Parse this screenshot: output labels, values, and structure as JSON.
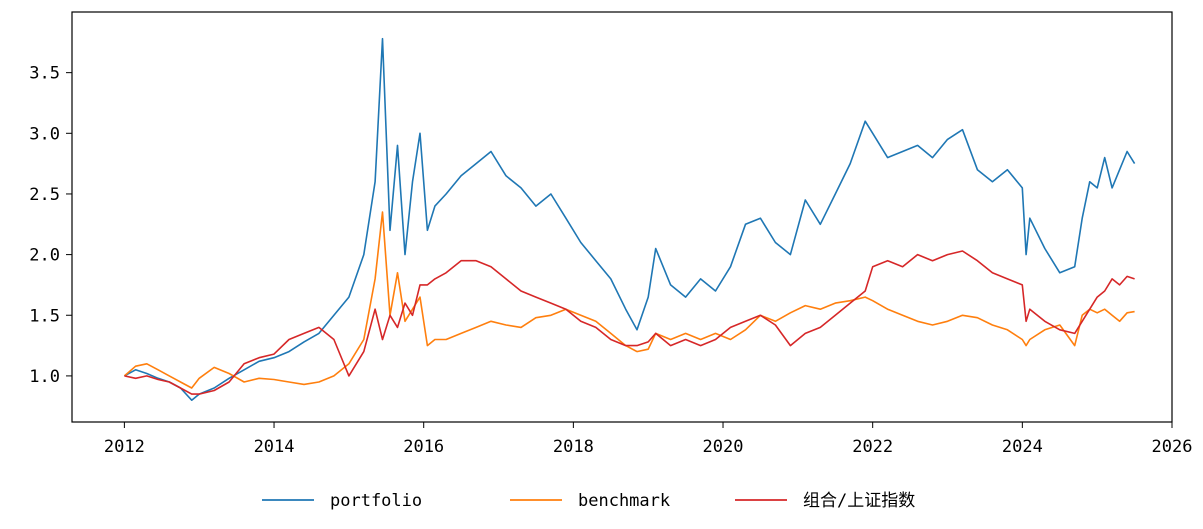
{
  "chart_data": {
    "type": "line",
    "title": "",
    "xlabel": "",
    "ylabel": "",
    "xlim": [
      2011.3,
      2026.0
    ],
    "ylim": [
      0.62,
      4.0
    ],
    "grid": false,
    "legend_placement": "bottom-center",
    "x_ticks": [
      "2012",
      "2014",
      "2016",
      "2018",
      "2020",
      "2022",
      "2024",
      "2026"
    ],
    "y_ticks": [
      "1.0",
      "1.5",
      "2.0",
      "2.5",
      "3.0",
      "3.5"
    ],
    "series": [
      {
        "name": "portfolio",
        "color": "#1f77b4",
        "x": [
          2012.0,
          2012.15,
          2012.3,
          2012.45,
          2012.6,
          2012.75,
          2012.9,
          2013.0,
          2013.2,
          2013.4,
          2013.6,
          2013.8,
          2014.0,
          2014.2,
          2014.4,
          2014.6,
          2014.8,
          2015.0,
          2015.2,
          2015.35,
          2015.45,
          2015.55,
          2015.65,
          2015.75,
          2015.85,
          2015.95,
          2016.05,
          2016.15,
          2016.3,
          2016.5,
          2016.7,
          2016.9,
          2017.1,
          2017.3,
          2017.5,
          2017.7,
          2017.9,
          2018.1,
          2018.3,
          2018.5,
          2018.7,
          2018.85,
          2019.0,
          2019.1,
          2019.3,
          2019.5,
          2019.7,
          2019.9,
          2020.1,
          2020.3,
          2020.5,
          2020.7,
          2020.9,
          2021.1,
          2021.3,
          2021.5,
          2021.7,
          2021.9,
          2022.0,
          2022.2,
          2022.4,
          2022.6,
          2022.8,
          2023.0,
          2023.2,
          2023.4,
          2023.6,
          2023.8,
          2024.0,
          2024.05,
          2024.1,
          2024.3,
          2024.5,
          2024.7,
          2024.8,
          2024.9,
          2025.0,
          2025.1,
          2025.2,
          2025.3,
          2025.4,
          2025.5
        ],
        "values": [
          1.0,
          1.05,
          1.02,
          0.98,
          0.95,
          0.9,
          0.8,
          0.85,
          0.9,
          0.98,
          1.05,
          1.12,
          1.15,
          1.2,
          1.28,
          1.35,
          1.5,
          1.65,
          2.0,
          2.6,
          3.78,
          2.2,
          2.9,
          2.0,
          2.6,
          3.0,
          2.2,
          2.4,
          2.5,
          2.65,
          2.75,
          2.85,
          2.65,
          2.55,
          2.4,
          2.5,
          2.3,
          2.1,
          1.95,
          1.8,
          1.55,
          1.38,
          1.65,
          2.05,
          1.75,
          1.65,
          1.8,
          1.7,
          1.9,
          2.25,
          2.3,
          2.1,
          2.0,
          2.45,
          2.25,
          2.5,
          2.75,
          3.1,
          3.0,
          2.8,
          2.85,
          2.9,
          2.8,
          2.95,
          3.03,
          2.7,
          2.6,
          2.7,
          2.55,
          2.0,
          2.3,
          2.05,
          1.85,
          1.9,
          2.3,
          2.6,
          2.55,
          2.8,
          2.55,
          2.7,
          2.85,
          2.75
        ]
      },
      {
        "name": "benchmark",
        "color": "#ff7f0e",
        "x": [
          2012.0,
          2012.15,
          2012.3,
          2012.45,
          2012.6,
          2012.75,
          2012.9,
          2013.0,
          2013.2,
          2013.4,
          2013.6,
          2013.8,
          2014.0,
          2014.2,
          2014.4,
          2014.6,
          2014.8,
          2015.0,
          2015.2,
          2015.35,
          2015.45,
          2015.55,
          2015.65,
          2015.75,
          2015.85,
          2015.95,
          2016.05,
          2016.15,
          2016.3,
          2016.5,
          2016.7,
          2016.9,
          2017.1,
          2017.3,
          2017.5,
          2017.7,
          2017.9,
          2018.1,
          2018.3,
          2018.5,
          2018.7,
          2018.85,
          2019.0,
          2019.1,
          2019.3,
          2019.5,
          2019.7,
          2019.9,
          2020.1,
          2020.3,
          2020.5,
          2020.7,
          2020.9,
          2021.1,
          2021.3,
          2021.5,
          2021.7,
          2021.9,
          2022.0,
          2022.2,
          2022.4,
          2022.6,
          2022.8,
          2023.0,
          2023.2,
          2023.4,
          2023.6,
          2023.8,
          2024.0,
          2024.05,
          2024.1,
          2024.3,
          2024.5,
          2024.7,
          2024.8,
          2024.9,
          2025.0,
          2025.1,
          2025.2,
          2025.3,
          2025.4,
          2025.5
        ],
        "values": [
          1.0,
          1.08,
          1.1,
          1.05,
          1.0,
          0.95,
          0.9,
          0.98,
          1.07,
          1.02,
          0.95,
          0.98,
          0.97,
          0.95,
          0.93,
          0.95,
          1.0,
          1.1,
          1.3,
          1.8,
          2.35,
          1.5,
          1.85,
          1.45,
          1.55,
          1.65,
          1.25,
          1.3,
          1.3,
          1.35,
          1.4,
          1.45,
          1.42,
          1.4,
          1.48,
          1.5,
          1.55,
          1.5,
          1.45,
          1.35,
          1.25,
          1.2,
          1.22,
          1.35,
          1.3,
          1.35,
          1.3,
          1.35,
          1.3,
          1.38,
          1.5,
          1.45,
          1.52,
          1.58,
          1.55,
          1.6,
          1.62,
          1.65,
          1.62,
          1.55,
          1.5,
          1.45,
          1.42,
          1.45,
          1.5,
          1.48,
          1.42,
          1.38,
          1.3,
          1.25,
          1.3,
          1.38,
          1.42,
          1.25,
          1.5,
          1.55,
          1.52,
          1.55,
          1.5,
          1.45,
          1.52,
          1.53
        ]
      },
      {
        "name": "组合/上证指数",
        "color": "#d62728",
        "x": [
          2012.0,
          2012.15,
          2012.3,
          2012.45,
          2012.6,
          2012.75,
          2012.9,
          2013.0,
          2013.2,
          2013.4,
          2013.6,
          2013.8,
          2014.0,
          2014.2,
          2014.4,
          2014.6,
          2014.8,
          2015.0,
          2015.2,
          2015.35,
          2015.45,
          2015.55,
          2015.65,
          2015.75,
          2015.85,
          2015.95,
          2016.05,
          2016.15,
          2016.3,
          2016.5,
          2016.7,
          2016.9,
          2017.1,
          2017.3,
          2017.5,
          2017.7,
          2017.9,
          2018.1,
          2018.3,
          2018.5,
          2018.7,
          2018.85,
          2019.0,
          2019.1,
          2019.3,
          2019.5,
          2019.7,
          2019.9,
          2020.1,
          2020.3,
          2020.5,
          2020.7,
          2020.9,
          2021.1,
          2021.3,
          2021.5,
          2021.7,
          2021.9,
          2022.0,
          2022.2,
          2022.4,
          2022.6,
          2022.8,
          2023.0,
          2023.2,
          2023.4,
          2023.6,
          2023.8,
          2024.0,
          2024.05,
          2024.1,
          2024.3,
          2024.5,
          2024.7,
          2024.8,
          2024.9,
          2025.0,
          2025.1,
          2025.2,
          2025.3,
          2025.4,
          2025.5
        ],
        "values": [
          1.0,
          0.98,
          1.0,
          0.97,
          0.95,
          0.9,
          0.85,
          0.85,
          0.88,
          0.95,
          1.1,
          1.15,
          1.18,
          1.3,
          1.35,
          1.4,
          1.3,
          1.0,
          1.2,
          1.55,
          1.3,
          1.5,
          1.4,
          1.6,
          1.5,
          1.75,
          1.75,
          1.8,
          1.85,
          1.95,
          1.95,
          1.9,
          1.8,
          1.7,
          1.65,
          1.6,
          1.55,
          1.45,
          1.4,
          1.3,
          1.25,
          1.25,
          1.28,
          1.35,
          1.25,
          1.3,
          1.25,
          1.3,
          1.4,
          1.45,
          1.5,
          1.42,
          1.25,
          1.35,
          1.4,
          1.5,
          1.6,
          1.7,
          1.9,
          1.95,
          1.9,
          2.0,
          1.95,
          2.0,
          2.03,
          1.95,
          1.85,
          1.8,
          1.75,
          1.45,
          1.55,
          1.45,
          1.38,
          1.35,
          1.45,
          1.55,
          1.65,
          1.7,
          1.8,
          1.75,
          1.82,
          1.8
        ]
      }
    ]
  }
}
